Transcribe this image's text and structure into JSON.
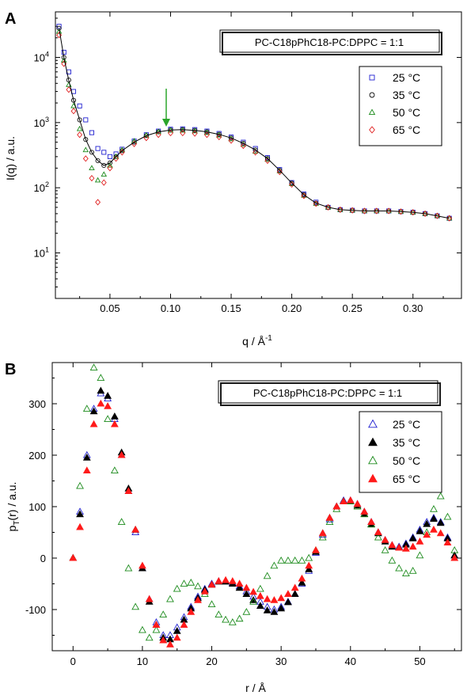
{
  "figure": {
    "panel_a_label": "A",
    "panel_b_label": "B"
  },
  "chart_data": [
    {
      "panel": "A",
      "type": "scatter",
      "title": "PC-C18pPhC18-PC:DPPC = 1:1",
      "xlabel": "q / Å",
      "xlabel_sup": "-1",
      "ylabel": "I(q) / a.u.",
      "xlim": [
        0.005,
        0.34
      ],
      "ylim": [
        2,
        50000
      ],
      "yscale": "log",
      "xticks": [
        0.05,
        0.1,
        0.15,
        0.2,
        0.25,
        0.3
      ],
      "xtick_labels": [
        "0.05",
        "0.10",
        "0.15",
        "0.20",
        "0.25",
        "0.30"
      ],
      "yticks": [
        10,
        100,
        1000,
        10000
      ],
      "ytick_labels": [
        {
          "base": "10",
          "exp": "1"
        },
        {
          "base": "10",
          "exp": "2"
        },
        {
          "base": "10",
          "exp": "3"
        },
        {
          "base": "10",
          "exp": "4"
        }
      ],
      "legend_placement": "top-right",
      "annotation": {
        "type": "arrow",
        "x": 0.097,
        "points_to_y": 900
      },
      "series": [
        {
          "name": "25 °C",
          "marker": "square-open",
          "color": "#1f1fd0",
          "x": [
            0.008,
            0.012,
            0.016,
            0.02,
            0.025,
            0.03,
            0.035,
            0.04,
            0.045,
            0.05,
            0.055,
            0.06,
            0.07,
            0.08,
            0.09,
            0.1,
            0.11,
            0.12,
            0.13,
            0.14,
            0.15,
            0.16,
            0.17,
            0.18,
            0.19,
            0.2,
            0.21,
            0.22,
            0.23,
            0.24,
            0.25,
            0.26,
            0.27,
            0.28,
            0.29,
            0.3,
            0.31,
            0.32,
            0.33
          ],
          "y": [
            30000,
            12000,
            6000,
            3000,
            1800,
            1100,
            700,
            400,
            350,
            300,
            330,
            390,
            520,
            650,
            740,
            790,
            800,
            780,
            740,
            680,
            600,
            500,
            400,
            290,
            190,
            120,
            80,
            60,
            50,
            46,
            45,
            44,
            44,
            44,
            43,
            42,
            40,
            37,
            34
          ]
        },
        {
          "name": "35 °C",
          "marker": "circle-open",
          "color": "#111111",
          "x": [
            0.008,
            0.012,
            0.016,
            0.02,
            0.025,
            0.03,
            0.035,
            0.04,
            0.045,
            0.05,
            0.055,
            0.06,
            0.07,
            0.08,
            0.09,
            0.1,
            0.11,
            0.12,
            0.13,
            0.14,
            0.15,
            0.16,
            0.17,
            0.18,
            0.19,
            0.2,
            0.21,
            0.22,
            0.23,
            0.24,
            0.25,
            0.26,
            0.27,
            0.28,
            0.29,
            0.3,
            0.31,
            0.32,
            0.33
          ],
          "y": [
            28000,
            10000,
            4500,
            2200,
            1100,
            550,
            350,
            260,
            220,
            240,
            300,
            370,
            500,
            630,
            720,
            770,
            780,
            760,
            720,
            660,
            580,
            480,
            380,
            280,
            185,
            118,
            78,
            58,
            50,
            46,
            45,
            44,
            44,
            44,
            43,
            42,
            40,
            37,
            34
          ]
        },
        {
          "name": "50 °C",
          "marker": "triangle-open",
          "color": "#1a8a1a",
          "x": [
            0.008,
            0.012,
            0.016,
            0.02,
            0.025,
            0.03,
            0.035,
            0.04,
            0.045,
            0.05,
            0.055,
            0.06,
            0.07,
            0.08,
            0.09,
            0.1,
            0.11,
            0.12,
            0.13,
            0.14,
            0.15,
            0.16,
            0.17,
            0.18,
            0.19,
            0.2,
            0.21,
            0.22,
            0.23,
            0.24,
            0.25,
            0.26,
            0.27,
            0.28,
            0.29,
            0.3,
            0.31,
            0.32,
            0.33
          ],
          "y": [
            25000,
            9000,
            3800,
            1800,
            800,
            380,
            200,
            130,
            160,
            220,
            300,
            380,
            520,
            640,
            720,
            760,
            760,
            740,
            700,
            640,
            560,
            460,
            360,
            270,
            180,
            115,
            76,
            57,
            50,
            46,
            45,
            44,
            44,
            44,
            43,
            42,
            40,
            37,
            34
          ]
        },
        {
          "name": "65 °C",
          "marker": "diamond-open",
          "color": "#e02020",
          "x": [
            0.008,
            0.012,
            0.016,
            0.02,
            0.025,
            0.03,
            0.035,
            0.04,
            0.045,
            0.05,
            0.055,
            0.06,
            0.07,
            0.08,
            0.09,
            0.1,
            0.11,
            0.12,
            0.13,
            0.14,
            0.15,
            0.16,
            0.17,
            0.18,
            0.19,
            0.2,
            0.21,
            0.22,
            0.23,
            0.24,
            0.25,
            0.26,
            0.27,
            0.28,
            0.29,
            0.3,
            0.31,
            0.32,
            0.33
          ],
          "y": [
            22000,
            8000,
            3200,
            1500,
            650,
            280,
            140,
            60,
            120,
            200,
            280,
            350,
            470,
            580,
            650,
            690,
            690,
            680,
            650,
            600,
            530,
            440,
            350,
            260,
            175,
            112,
            75,
            57,
            50,
            46,
            45,
            44,
            44,
            44,
            43,
            42,
            40,
            37,
            34
          ]
        }
      ]
    },
    {
      "panel": "B",
      "type": "scatter",
      "title": "PC-C18pPhC18-PC:DPPC = 1:1",
      "xlabel": "r / Å",
      "ylabel": "p",
      "ylabel_sub": "T",
      "ylabel_rest": "(r) / a.u.",
      "xlim": [
        -3,
        56
      ],
      "ylim": [
        -180,
        380
      ],
      "xticks": [
        0,
        10,
        20,
        30,
        40,
        50
      ],
      "xtick_labels": [
        "0",
        "10",
        "20",
        "30",
        "40",
        "50"
      ],
      "yticks": [
        -100,
        0,
        100,
        200,
        300
      ],
      "ytick_labels": [
        "-100",
        "0",
        "100",
        "200",
        "300"
      ],
      "legend_placement": "top-right",
      "series": [
        {
          "name": "25 °C",
          "marker": "triangle-open",
          "color": "#1f1fd0",
          "x": [
            0,
            1,
            2,
            3,
            4,
            5,
            6,
            7,
            8,
            9,
            10,
            11,
            12,
            13,
            14,
            15,
            16,
            17,
            18,
            19,
            20,
            21,
            22,
            23,
            24,
            25,
            26,
            27,
            28,
            29,
            30,
            31,
            32,
            33,
            34,
            35,
            36,
            37,
            38,
            39,
            40,
            41,
            42,
            43,
            44,
            45,
            46,
            47,
            48,
            49,
            50,
            51,
            52,
            53,
            54,
            55
          ],
          "y": [
            0,
            90,
            200,
            290,
            320,
            310,
            270,
            200,
            130,
            50,
            -20,
            -80,
            -125,
            -150,
            -150,
            -135,
            -115,
            -95,
            -75,
            -60,
            -50,
            -45,
            -45,
            -48,
            -55,
            -65,
            -75,
            -85,
            -95,
            -100,
            -95,
            -85,
            -70,
            -50,
            -25,
            10,
            45,
            75,
            100,
            112,
            112,
            105,
            90,
            70,
            50,
            35,
            25,
            22,
            28,
            40,
            55,
            70,
            78,
            70,
            40,
            5
          ]
        },
        {
          "name": "35 °C",
          "marker": "triangle-filled",
          "color": "#000000",
          "x": [
            0,
            1,
            2,
            3,
            4,
            5,
            6,
            7,
            8,
            9,
            10,
            11,
            12,
            13,
            14,
            15,
            16,
            17,
            18,
            19,
            20,
            21,
            22,
            23,
            24,
            25,
            26,
            27,
            28,
            29,
            30,
            31,
            32,
            33,
            34,
            35,
            36,
            37,
            38,
            39,
            40,
            41,
            42,
            43,
            44,
            45,
            46,
            47,
            48,
            49,
            50,
            51,
            52,
            53,
            54,
            55
          ],
          "y": [
            0,
            85,
            195,
            285,
            325,
            315,
            275,
            205,
            135,
            55,
            -20,
            -85,
            -130,
            -155,
            -158,
            -142,
            -120,
            -98,
            -78,
            -62,
            -52,
            -46,
            -46,
            -50,
            -58,
            -70,
            -82,
            -93,
            -102,
            -105,
            -98,
            -86,
            -70,
            -48,
            -22,
            12,
            48,
            78,
            100,
            110,
            110,
            102,
            86,
            66,
            48,
            32,
            22,
            20,
            26,
            38,
            52,
            66,
            76,
            68,
            38,
            5
          ]
        },
        {
          "name": "50 °C",
          "marker": "triangle-open",
          "color": "#1a8a1a",
          "x": [
            0,
            1,
            2,
            3,
            4,
            5,
            6,
            7,
            8,
            9,
            10,
            11,
            12,
            13,
            14,
            15,
            16,
            17,
            18,
            19,
            20,
            21,
            22,
            23,
            24,
            25,
            26,
            27,
            28,
            29,
            30,
            31,
            32,
            33,
            34,
            35,
            36,
            37,
            38,
            39,
            40,
            41,
            42,
            43,
            44,
            45,
            46,
            47,
            48,
            49,
            50,
            51,
            52,
            53,
            54,
            55
          ],
          "y": [
            0,
            140,
            290,
            370,
            350,
            270,
            170,
            70,
            -20,
            -95,
            -140,
            -155,
            -140,
            -110,
            -80,
            -60,
            -50,
            -48,
            -55,
            -70,
            -90,
            -110,
            -120,
            -125,
            -118,
            -105,
            -85,
            -60,
            -35,
            -15,
            -5,
            -5,
            -5,
            -5,
            0,
            15,
            40,
            70,
            95,
            110,
            110,
            100,
            85,
            65,
            40,
            15,
            -5,
            -20,
            -30,
            -25,
            5,
            50,
            95,
            120,
            80,
            15
          ]
        },
        {
          "name": "65 °C",
          "marker": "triangle-filled",
          "color": "#ff1a1a",
          "x": [
            0,
            1,
            2,
            3,
            4,
            5,
            6,
            7,
            8,
            9,
            10,
            11,
            12,
            13,
            14,
            15,
            16,
            17,
            18,
            19,
            20,
            21,
            22,
            23,
            24,
            25,
            26,
            27,
            28,
            29,
            30,
            31,
            32,
            33,
            34,
            35,
            36,
            37,
            38,
            39,
            40,
            41,
            42,
            43,
            44,
            45,
            46,
            47,
            48,
            49,
            50,
            51,
            52,
            53,
            54,
            55
          ],
          "y": [
            0,
            60,
            170,
            260,
            300,
            295,
            260,
            200,
            130,
            55,
            -15,
            -80,
            -130,
            -160,
            -168,
            -155,
            -130,
            -105,
            -82,
            -65,
            -52,
            -45,
            -43,
            -45,
            -50,
            -58,
            -66,
            -74,
            -80,
            -82,
            -78,
            -70,
            -58,
            -40,
            -15,
            15,
            48,
            78,
            100,
            110,
            112,
            105,
            90,
            70,
            50,
            35,
            25,
            20,
            18,
            22,
            32,
            45,
            55,
            48,
            30,
            0
          ]
        }
      ]
    }
  ]
}
